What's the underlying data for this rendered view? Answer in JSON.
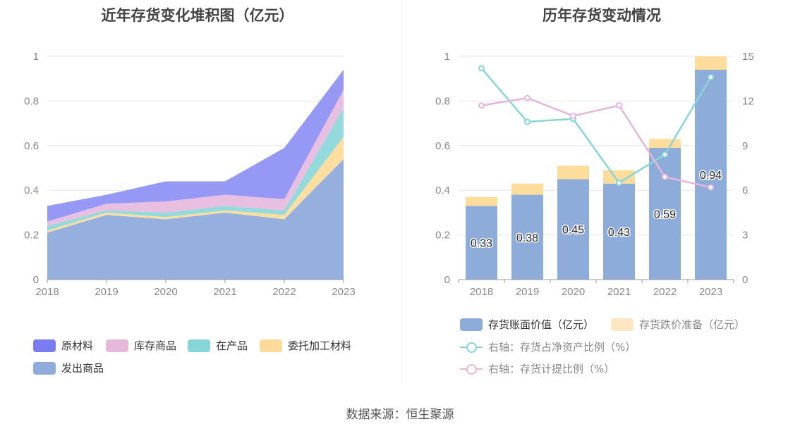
{
  "source_text": "数据来源：恒生聚源",
  "chart_data": [
    {
      "type": "area",
      "title": "近年存货变化堆积图（亿元）",
      "x": [
        "2018",
        "2019",
        "2020",
        "2021",
        "2022",
        "2023"
      ],
      "ylim": [
        0,
        1
      ],
      "yticks": [
        "0",
        "0.2",
        "0.4",
        "0.6",
        "0.8",
        "1"
      ],
      "stacked": true,
      "series": [
        {
          "name": "发出商品",
          "color": "#8fabdc",
          "values": [
            0.21,
            0.29,
            0.27,
            0.3,
            0.27,
            0.54
          ]
        },
        {
          "name": "委托加工材料",
          "color": "#fddc9c",
          "values": [
            0.01,
            0.01,
            0.01,
            0.01,
            0.02,
            0.1
          ]
        },
        {
          "name": "在产品",
          "color": "#8ed7d9",
          "values": [
            0.02,
            0.01,
            0.02,
            0.02,
            0.02,
            0.13
          ]
        },
        {
          "name": "库存商品",
          "color": "#e7bcdf",
          "values": [
            0.02,
            0.03,
            0.05,
            0.05,
            0.05,
            0.08
          ]
        },
        {
          "name": "原材料",
          "color": "#8f93f4",
          "values": [
            0.07,
            0.04,
            0.09,
            0.06,
            0.23,
            0.09
          ]
        }
      ],
      "legend_order": [
        "原材料",
        "库存商品",
        "在产品",
        "委托加工材料",
        "发出商品"
      ],
      "legend_colors": [
        "#7b7cf0",
        "#e6b8dc",
        "#86d6d8",
        "#fdd99a",
        "#8fabdc"
      ]
    },
    {
      "type": "bar",
      "title": "历年存货变动情况",
      "categories": [
        "2018",
        "2019",
        "2020",
        "2021",
        "2022",
        "2023"
      ],
      "ylim": [
        0,
        1
      ],
      "yticks": [
        "0",
        "0.2",
        "0.4",
        "0.6",
        "0.8",
        "1"
      ],
      "y2lim": [
        0,
        15
      ],
      "y2ticks": [
        "0",
        "3",
        "6",
        "9",
        "12",
        "15"
      ],
      "stacked": true,
      "series": [
        {
          "name": "存货账面价值（亿元）",
          "color": "#8eacd9",
          "values": [
            0.33,
            0.38,
            0.45,
            0.43,
            0.59,
            0.94
          ],
          "labels": [
            "0.33",
            "0.38",
            "0.45",
            "0.43",
            "0.59",
            "0.94"
          ]
        },
        {
          "name": "存货跌价准备（亿元）",
          "color": "#fddc9c",
          "values": [
            0.04,
            0.05,
            0.06,
            0.06,
            0.04,
            0.06
          ]
        }
      ],
      "line_series": [
        {
          "name": "右轴：存货占净资产比例（%）",
          "color": "#86d5d8",
          "axis": "right",
          "values": [
            14.2,
            10.6,
            10.8,
            6.5,
            8.4,
            13.6
          ]
        },
        {
          "name": "右轴：存货计提比例（%）",
          "color": "#e6b5dc",
          "axis": "right",
          "values": [
            11.7,
            12.2,
            11.0,
            11.7,
            6.9,
            6.2
          ]
        }
      ]
    }
  ]
}
